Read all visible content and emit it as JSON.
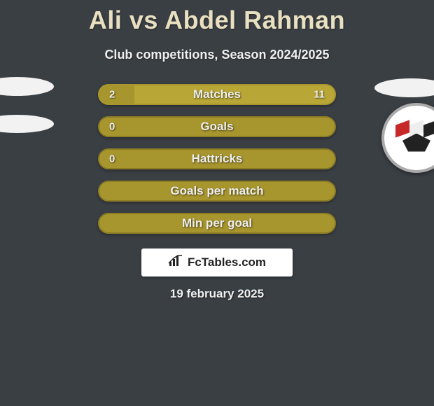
{
  "header": {
    "title": "Ali vs Abdel Rahman",
    "subtitle": "Club competitions, Season 2024/2025"
  },
  "colors": {
    "background": "#3a3f44",
    "title_color": "#e8e0c0",
    "text_color": "#f0f0f0",
    "bar_accent": "#a7952e",
    "bar_accent_light": "#b8a736",
    "bar_border": "#8c7c24",
    "badge_white": "#f2f2f2"
  },
  "typography": {
    "title_fontsize": 36,
    "subtitle_fontsize": 18,
    "bar_label_fontsize": 17,
    "bar_value_fontsize": 15,
    "date_fontsize": 17
  },
  "stats": [
    {
      "label": "Matches",
      "left_value": "2",
      "right_value": "11",
      "left_pct": 15,
      "right_pct": 85,
      "left_color": "#a7952e",
      "right_color": "#b8a736",
      "border_color": "#a7952e"
    },
    {
      "label": "Goals",
      "left_value": "0",
      "right_value": "",
      "left_pct": 0,
      "right_pct": 100,
      "left_color": "#a7952e",
      "right_color": "#a7952e",
      "border_color": "#8c7c24"
    },
    {
      "label": "Hattricks",
      "left_value": "0",
      "right_value": "",
      "left_pct": 0,
      "right_pct": 100,
      "left_color": "#a7952e",
      "right_color": "#a7952e",
      "border_color": "#8c7c24"
    },
    {
      "label": "Goals per match",
      "left_value": "",
      "right_value": "",
      "left_pct": 0,
      "right_pct": 100,
      "left_color": "#a7952e",
      "right_color": "#a7952e",
      "border_color": "#8c7c24"
    },
    {
      "label": "Min per goal",
      "left_value": "",
      "right_value": "",
      "left_pct": 0,
      "right_pct": 100,
      "left_color": "#a7952e",
      "right_color": "#a7952e",
      "border_color": "#8c7c24"
    }
  ],
  "attribution": {
    "text": "FcTables.com",
    "icon": "chart-icon"
  },
  "footer": {
    "date": "19 february 2025"
  },
  "left_player_badges": {
    "type": "placeholder-ellipses",
    "count": 2,
    "color": "#f2f2f2"
  },
  "right_player_badges": {
    "type": "placeholder-ellipse-plus-emblem",
    "ellipse_color": "#f2f2f2",
    "emblem": {
      "shape": "circle",
      "background": "#ffffff",
      "border_color": "#aaaaaa",
      "flag_colors": [
        "#c62828",
        "#eeeeee",
        "#222222"
      ]
    }
  }
}
